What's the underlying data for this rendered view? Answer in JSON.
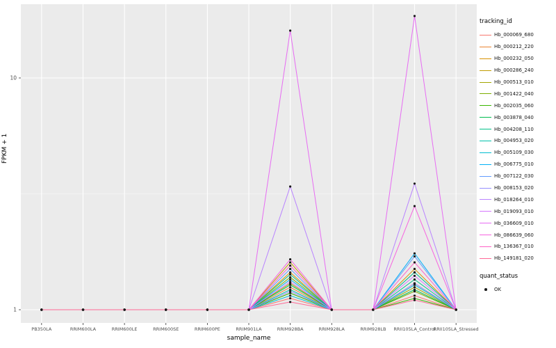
{
  "chart_data": {
    "type": "line",
    "title": "",
    "xlabel": "sample_name",
    "ylabel": "FPKM + 1",
    "y_scale": "log10",
    "y_ticks": [
      1,
      10
    ],
    "ylim": [
      1,
      21
    ],
    "grid": true,
    "legend_position": "right",
    "legend_title": "tracking_id",
    "quant_legend": {
      "title": "quant_status",
      "items": [
        "OK"
      ]
    },
    "panel_color": "#EBEBEB",
    "point_color": "#1a1a1a",
    "categories": [
      "PB350LA",
      "RRIM600LA",
      "RRIM600LE",
      "RRIM600SE",
      "RRIM600PE",
      "RRIM901LA",
      "RRIM928BA",
      "RRIM928LA",
      "RRIM928LB",
      "RRII105LA_Control",
      "RRII105LA_Stressed"
    ],
    "series": [
      {
        "name": "Hb_000069_680",
        "color": "#F8766D",
        "values": [
          1,
          1,
          1,
          1,
          1,
          1,
          1.12,
          1,
          1,
          1.15,
          1
        ]
      },
      {
        "name": "Hb_000212_220",
        "color": "#EA8331",
        "values": [
          1,
          1,
          1,
          1,
          1,
          1,
          1.25,
          1,
          1,
          1.3,
          1
        ]
      },
      {
        "name": "Hb_000232_050",
        "color": "#D89000",
        "values": [
          1,
          1,
          1,
          1,
          1,
          1,
          1.45,
          1,
          1,
          1.5,
          1
        ]
      },
      {
        "name": "Hb_000286_240",
        "color": "#C09B00",
        "values": [
          1,
          1,
          1,
          1,
          1,
          1,
          1.6,
          1,
          1,
          1.45,
          1
        ]
      },
      {
        "name": "Hb_000513_010",
        "color": "#A3A500",
        "values": [
          1,
          1,
          1,
          1,
          1,
          1,
          1.3,
          1,
          1,
          1.25,
          1
        ]
      },
      {
        "name": "Hb_001422_040",
        "color": "#7CAE00",
        "values": [
          1,
          1,
          1,
          1,
          1,
          1,
          1.38,
          1,
          1,
          1.2,
          1
        ]
      },
      {
        "name": "Hb_002035_060",
        "color": "#39B600",
        "values": [
          1,
          1,
          1,
          1,
          1,
          1,
          1.18,
          1,
          1,
          1.12,
          1
        ]
      },
      {
        "name": "Hb_003878_040",
        "color": "#00BB4E",
        "values": [
          1,
          1,
          1,
          1,
          1,
          1,
          1.28,
          1,
          1,
          1.22,
          1
        ]
      },
      {
        "name": "Hb_004208_110",
        "color": "#00C087",
        "values": [
          1,
          1,
          1,
          1,
          1,
          1,
          1.42,
          1,
          1,
          1.35,
          1
        ]
      },
      {
        "name": "Hb_004953_020",
        "color": "#00C1AB",
        "values": [
          1,
          1,
          1,
          1,
          1,
          1,
          1.22,
          1,
          1,
          1.45,
          1
        ]
      },
      {
        "name": "Hb_005109_030",
        "color": "#00BDD0",
        "values": [
          1,
          1,
          1,
          1,
          1,
          1,
          1.15,
          1,
          1,
          1.28,
          1
        ]
      },
      {
        "name": "Hb_006775_010",
        "color": "#00B0F6",
        "values": [
          1,
          1,
          1,
          1,
          1,
          1,
          1.35,
          1,
          1,
          1.75,
          1
        ]
      },
      {
        "name": "Hb_007122_030",
        "color": "#619CFF",
        "values": [
          1,
          1,
          1,
          1,
          1,
          1,
          1.5,
          1,
          1,
          1.7,
          1
        ]
      },
      {
        "name": "Hb_008153_020",
        "color": "#9590FF",
        "values": [
          1,
          1,
          1,
          1,
          1,
          1,
          1.2,
          1,
          1,
          1.3,
          1
        ]
      },
      {
        "name": "Hb_018264_010",
        "color": "#B983FF",
        "values": [
          1,
          1,
          1,
          1,
          1,
          1,
          3.4,
          1,
          1,
          3.5,
          1
        ]
      },
      {
        "name": "Hb_019093_010",
        "color": "#D575FE",
        "values": [
          1,
          1,
          1,
          1,
          1,
          1,
          1.32,
          1,
          1,
          1.4,
          1
        ]
      },
      {
        "name": "Hb_036609_010",
        "color": "#E76BF3",
        "values": [
          1,
          1,
          1,
          1,
          1,
          1,
          16.0,
          1,
          1,
          18.5,
          1
        ]
      },
      {
        "name": "Hb_086639_060",
        "color": "#F763E0",
        "values": [
          1,
          1,
          1,
          1,
          1,
          1,
          1.65,
          1,
          1,
          2.8,
          1
        ]
      },
      {
        "name": "Hb_136367_010",
        "color": "#FF61C7",
        "values": [
          1,
          1,
          1,
          1,
          1,
          1,
          1.55,
          1,
          1,
          1.6,
          1
        ]
      },
      {
        "name": "Hb_149181_020",
        "color": "#FF6896",
        "values": [
          1,
          1,
          1,
          1,
          1,
          1,
          1.08,
          1,
          1,
          1.1,
          1
        ]
      }
    ]
  }
}
